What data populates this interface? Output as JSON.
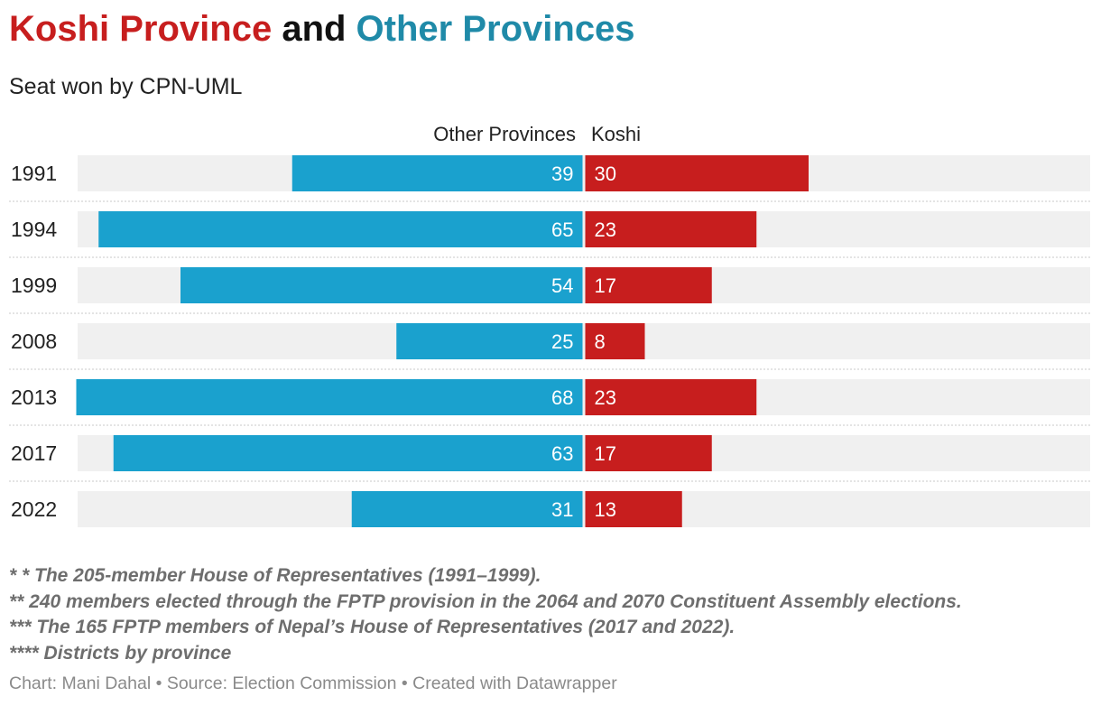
{
  "title": {
    "part1": "Koshi Province",
    "part2": " and ",
    "part3": "Other Provinces"
  },
  "subtitle": "Seat won by CPN-UML",
  "colors": {
    "koshi": "#c71e1e",
    "other": "#1aa1ce",
    "track": "#f0f0f0"
  },
  "chart_data": {
    "type": "bar",
    "orientation": "horizontal-diverging",
    "categories": [
      "1991",
      "1994",
      "1999",
      "2008",
      "2013",
      "2017",
      "2022"
    ],
    "series": [
      {
        "name": "Other Provinces",
        "values": [
          39,
          65,
          54,
          25,
          68,
          63,
          31
        ]
      },
      {
        "name": "Koshi",
        "values": [
          30,
          23,
          17,
          8,
          23,
          17,
          13
        ]
      }
    ],
    "xlim": [
      -68,
      65
    ]
  },
  "notes": [
    "* * The 205-member House of Representatives (1991–1999).",
    "** 240 members elected through the FPTP provision in the 2064 and 2070 Constituent Assembly elections.",
    "*** The 165 FPTP members of Nepal’s House of Representatives (2017 and 2022).",
    "**** Districts by province"
  ],
  "footer": "Chart: Mani Dahal • Source: Election Commission • Created with Datawrapper"
}
